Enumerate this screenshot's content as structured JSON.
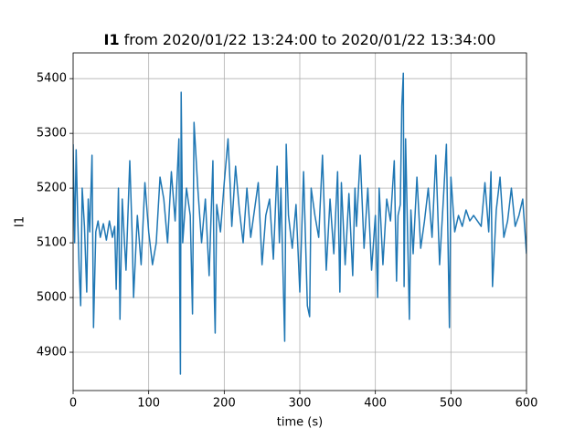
{
  "chart_data": {
    "type": "line",
    "title_series": "I1",
    "title_range": "from 2020/01/22 13:24:00 to 2020/01/22 13:34:00",
    "xlabel": "time (s)",
    "ylabel": "I1",
    "x": [
      0,
      2,
      4,
      6,
      8,
      10,
      12,
      15,
      18,
      20,
      22,
      25,
      27,
      30,
      33,
      36,
      40,
      44,
      48,
      52,
      55,
      57,
      60,
      62,
      65,
      68,
      70,
      75,
      78,
      80,
      85,
      90,
      95,
      100,
      105,
      110,
      115,
      120,
      125,
      130,
      135,
      140,
      141,
      142,
      143,
      145,
      150,
      155,
      158,
      160,
      165,
      170,
      175,
      180,
      185,
      187,
      188,
      190,
      195,
      200,
      205,
      208,
      210,
      215,
      220,
      225,
      230,
      235,
      240,
      245,
      250,
      255,
      260,
      265,
      270,
      273,
      275,
      280,
      282,
      285,
      290,
      295,
      300,
      305,
      310,
      313,
      315,
      320,
      325,
      330,
      335,
      340,
      345,
      350,
      353,
      355,
      360,
      365,
      370,
      373,
      375,
      380,
      385,
      390,
      395,
      400,
      403,
      405,
      410,
      415,
      420,
      425,
      428,
      430,
      433,
      435,
      437,
      438,
      440,
      445,
      447,
      450,
      455,
      460,
      465,
      470,
      475,
      480,
      485,
      490,
      494,
      498,
      500,
      505,
      510,
      515,
      520,
      525,
      530,
      540,
      545,
      550,
      553,
      555,
      560,
      565,
      570,
      575,
      580,
      585,
      590,
      595,
      600
    ],
    "values": [
      5280,
      5100,
      5270,
      5150,
      5050,
      4985,
      5200,
      5130,
      5010,
      5180,
      5120,
      5260,
      4945,
      5120,
      5140,
      5110,
      5135,
      5105,
      5140,
      5110,
      5130,
      5015,
      5200,
      4960,
      5180,
      5100,
      5050,
      5250,
      5120,
      5000,
      5150,
      5060,
      5210,
      5120,
      5060,
      5100,
      5220,
      5180,
      5100,
      5230,
      5140,
      5290,
      5040,
      4860,
      5375,
      5100,
      5200,
      5150,
      4970,
      5320,
      5200,
      5100,
      5180,
      5040,
      5250,
      4995,
      4935,
      5170,
      5120,
      5210,
      5290,
      5200,
      5130,
      5240,
      5160,
      5100,
      5200,
      5110,
      5160,
      5210,
      5060,
      5150,
      5180,
      5070,
      5240,
      5100,
      5200,
      4920,
      5280,
      5150,
      5090,
      5170,
      5010,
      5230,
      4985,
      4965,
      5200,
      5150,
      5110,
      5260,
      5050,
      5180,
      5080,
      5230,
      5010,
      5210,
      5060,
      5190,
      5040,
      5200,
      5130,
      5260,
      5090,
      5200,
      5050,
      5150,
      5000,
      5200,
      5060,
      5180,
      5140,
      5250,
      5030,
      5150,
      5170,
      5350,
      5410,
      5020,
      5290,
      4960,
      5160,
      5080,
      5220,
      5090,
      5140,
      5200,
      5110,
      5260,
      5060,
      5180,
      5280,
      4945,
      5220,
      5120,
      5150,
      5130,
      5160,
      5140,
      5150,
      5130,
      5210,
      5120,
      5230,
      5020,
      5160,
      5220,
      5110,
      5140,
      5200,
      5130,
      5150,
      5180,
      5080
    ],
    "color": "#1f77b4",
    "xlim": [
      0,
      600
    ],
    "xticks": [
      0,
      100,
      200,
      300,
      400,
      500,
      600
    ],
    "ylim": [
      4830,
      5447
    ],
    "yticks": [
      4900,
      5000,
      5100,
      5200,
      5300,
      5400
    ],
    "grid": true
  }
}
